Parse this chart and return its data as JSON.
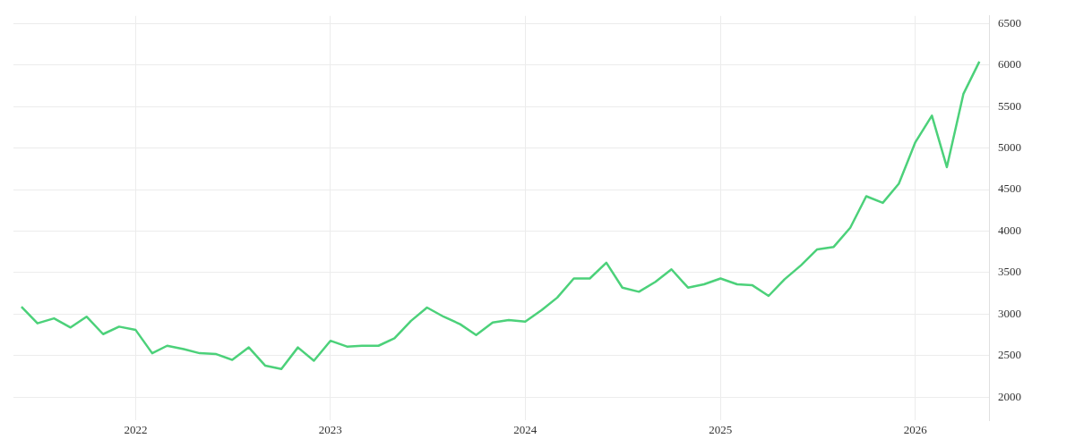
{
  "chart_data": {
    "type": "line",
    "x": [
      "2021-06",
      "2021-07",
      "2021-08",
      "2021-09",
      "2021-10",
      "2021-11",
      "2021-12",
      "2022-01",
      "2022-02",
      "2022-03",
      "2022-04",
      "2022-05",
      "2022-06",
      "2022-07",
      "2022-08",
      "2022-09",
      "2022-10",
      "2022-11",
      "2022-12",
      "2023-01",
      "2023-02",
      "2023-03",
      "2023-04",
      "2023-05",
      "2023-06",
      "2023-07",
      "2023-08",
      "2023-09",
      "2023-10",
      "2023-11",
      "2023-12",
      "2024-01",
      "2024-02",
      "2024-03",
      "2024-04",
      "2024-05",
      "2024-06",
      "2024-07",
      "2024-08",
      "2024-09",
      "2024-10",
      "2024-11",
      "2024-12",
      "2025-01",
      "2025-02",
      "2025-03",
      "2025-04",
      "2025-05",
      "2025-06",
      "2025-07",
      "2025-08",
      "2025-09",
      "2025-10",
      "2025-11",
      "2025-12",
      "2026-01",
      "2026-02",
      "2026-03",
      "2026-04",
      "2026-05"
    ],
    "series": [
      {
        "color": "#4cd17a",
        "values": [
          3090,
          2890,
          2950,
          2840,
          2970,
          2760,
          2850,
          2810,
          2530,
          2620,
          2580,
          2530,
          2520,
          2450,
          2600,
          2380,
          2340,
          2600,
          2440,
          2680,
          2610,
          2620,
          2620,
          2710,
          2920,
          3080,
          2970,
          2880,
          2750,
          2900,
          2930,
          2910,
          3050,
          3200,
          3430,
          3430,
          3620,
          3320,
          3270,
          3390,
          3540,
          3320,
          3360,
          3430,
          3360,
          3350,
          3220,
          3420,
          3590,
          3780,
          3810,
          4040,
          4420,
          4340,
          4570,
          5070,
          5390,
          4770,
          5650,
          6040
        ]
      }
    ],
    "xlim": [
      "2021-05-17",
      "2026-05-19"
    ],
    "xticks": [
      "2022",
      "2023",
      "2024",
      "2025",
      "2026"
    ],
    "ylim": [
      1720,
      6590
    ],
    "yticks": [
      2000,
      2500,
      3000,
      3500,
      4000,
      4500,
      5000,
      5500,
      6000,
      6500
    ],
    "grid": true,
    "legend": false,
    "marker": "none",
    "line_style": "solid"
  }
}
